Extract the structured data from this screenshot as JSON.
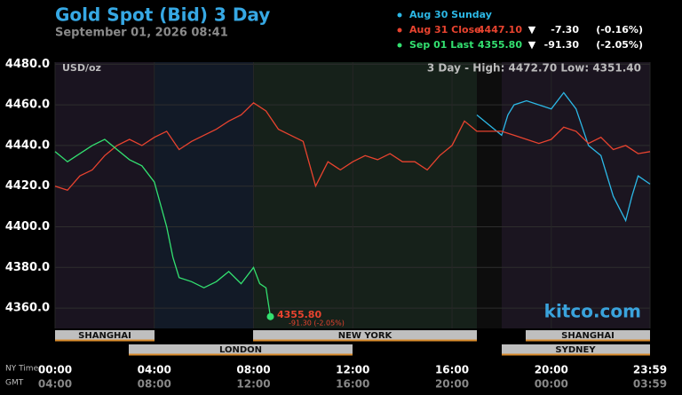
{
  "chart_data": {
    "type": "line",
    "title": "Gold Spot (Bid) 3 Day",
    "subtitle": "September 01, 2026 08:41",
    "unit_label": "USD/oz",
    "stats": "3 Day - High: 4472.70  Low: 4351.40",
    "watermark": "kitco.com",
    "last_label": "4355.80",
    "last_change": "-91.30 (-2.05%)",
    "x_axis_labels": [
      "NY Time",
      "GMT"
    ],
    "sessions": [
      "SHANGHAI",
      "LONDON",
      "NEW YORK",
      "SHANGHAI",
      "SYDNEY"
    ],
    "xlim": [
      0,
      23.98
    ],
    "ylim": [
      4350,
      4481
    ],
    "grid": true,
    "yticks": [
      {
        "value": 4360,
        "label": "4360.0"
      },
      {
        "value": 4380,
        "label": "4380.0"
      },
      {
        "value": 4400,
        "label": "4400.0"
      },
      {
        "value": 4420,
        "label": "4420.0"
      },
      {
        "value": 4440,
        "label": "4440.0"
      },
      {
        "value": 4460,
        "label": "4460.0"
      },
      {
        "value": 4480,
        "label": "4480.0"
      }
    ],
    "xticks": [
      {
        "value": 0,
        "label": "00:00"
      },
      {
        "value": 4,
        "label": "04:00"
      },
      {
        "value": 8,
        "label": "08:00"
      },
      {
        "value": 12,
        "label": "12:00"
      },
      {
        "value": 16,
        "label": "16:00"
      },
      {
        "value": 20,
        "label": "20:00"
      },
      {
        "value": 23.98,
        "label": "23:59"
      }
    ],
    "x2ticks": [
      {
        "value": 0,
        "label": "04:00"
      },
      {
        "value": 4,
        "label": "08:00"
      },
      {
        "value": 8,
        "label": "12:00"
      },
      {
        "value": 12,
        "label": "16:00"
      },
      {
        "value": 16,
        "label": "20:00"
      },
      {
        "value": 20,
        "label": "00:00"
      },
      {
        "value": 23.98,
        "label": "03:59"
      }
    ],
    "series": [
      {
        "name": "Aug 30 Sunday",
        "color": "#2cb8e6",
        "legend_value": "",
        "arrow": "",
        "change": "",
        "change_pct": "",
        "x": [
          17,
          18,
          18.25,
          18.5,
          19,
          19.5,
          20,
          20.5,
          21,
          21.5,
          22,
          22.5,
          23,
          23.25,
          23.5,
          23.98
        ],
        "values": [
          4455,
          4445,
          4455,
          4460,
          4462,
          4460,
          4458,
          4466,
          4458,
          4440,
          4435,
          4415,
          4403,
          4415,
          4425,
          4421
        ]
      },
      {
        "name": "Aug 31 Close",
        "color": "#e8432f",
        "legend_value": "4447.10",
        "arrow": "▼",
        "change": "-7.30",
        "change_pct": "(-0.16%)",
        "x": [
          0,
          0.5,
          1,
          1.5,
          2,
          2.5,
          3,
          3.5,
          4,
          4.5,
          5,
          5.5,
          6,
          6.5,
          7,
          7.5,
          8,
          8.5,
          9,
          9.5,
          10,
          10.5,
          11,
          11.5,
          12,
          12.5,
          13,
          13.5,
          14,
          14.5,
          15,
          15.5,
          16,
          16.5,
          17,
          17.5,
          18,
          18.5,
          19,
          19.5,
          20,
          20.5,
          21,
          21.5,
          22,
          22.5,
          23,
          23.5,
          23.98
        ],
        "values": [
          4420,
          4418,
          4425,
          4428,
          4435,
          4440,
          4443,
          4440,
          4444,
          4447,
          4438,
          4442,
          4445,
          4448,
          4452,
          4455,
          4461,
          4457,
          4448,
          4445,
          4442,
          4420,
          4432,
          4428,
          4432,
          4435,
          4433,
          4436,
          4432,
          4432,
          4428,
          4435,
          4440,
          4452,
          4447,
          4447,
          4447,
          4445,
          4443,
          4441,
          4443,
          4449,
          4447,
          4441,
          4444,
          4438,
          4440,
          4436,
          4437
        ]
      },
      {
        "name": "Sep 01 Last",
        "color": "#33e070",
        "legend_value": "4355.80",
        "arrow": "▼",
        "change": "-91.30",
        "change_pct": "(-2.05%)",
        "x": [
          0,
          0.5,
          1,
          1.5,
          2,
          2.5,
          3,
          3.5,
          4,
          4.5,
          4.75,
          5,
          5.5,
          6,
          6.5,
          7,
          7.5,
          8,
          8.25,
          8.5,
          8.68
        ],
        "values": [
          4437,
          4432,
          4436,
          4440,
          4443,
          4438,
          4433,
          4430,
          4422,
          4400,
          4385,
          4375,
          4373,
          4370,
          4373,
          4378,
          4372,
          4380,
          4372,
          4370,
          4355.8
        ]
      }
    ]
  }
}
